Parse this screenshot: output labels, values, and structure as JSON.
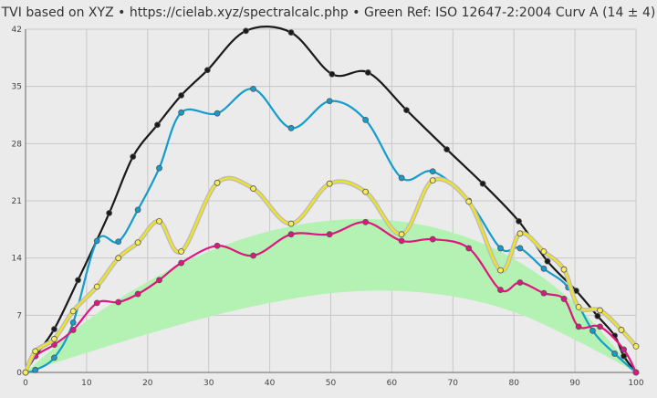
{
  "chart_data": {
    "type": "line",
    "title": "TVI based on XYZ  •  https://cielab.xyz/spectralcalc.php  •  Green Ref: ISO 12647-2:2004 Curv A (14 ± 4)",
    "xlabel": "",
    "ylabel": "",
    "xlim": [
      0,
      100
    ],
    "ylim": [
      0,
      42
    ],
    "x_ticks": [
      0,
      10,
      20,
      30,
      40,
      50,
      60,
      70,
      80,
      90,
      100
    ],
    "y_ticks": [
      0,
      7,
      14,
      21,
      28,
      35,
      42
    ],
    "grid": true,
    "reference_band": {
      "color": "#b4f2b4",
      "x": [
        0,
        10,
        20,
        30,
        40,
        50,
        60,
        70,
        80,
        90,
        100
      ],
      "upper": [
        0,
        6.3,
        11.1,
        14.8,
        17.3,
        18.6,
        18.6,
        17.1,
        13.9,
        8.4,
        0
      ],
      "lower": [
        0,
        2.4,
        4.7,
        6.8,
        8.5,
        9.7,
        10.0,
        9.3,
        7.4,
        4.0,
        0
      ]
    },
    "series": [
      {
        "color": "#1a1a1a",
        "x": [
          0,
          1.6,
          4.7,
          8.6,
          13.7,
          17.6,
          21.6,
          25.5,
          29.8,
          36.1,
          43.5,
          50.2,
          56.1,
          62.4,
          69.0,
          74.9,
          80.8,
          85.5,
          90.2,
          93.7,
          96.5,
          98.0,
          100
        ],
        "y": [
          0,
          2,
          5.3,
          11.3,
          19.5,
          26.4,
          30.3,
          33.9,
          37.0,
          41.8,
          41.6,
          36.5,
          36.7,
          32.1,
          27.3,
          23.1,
          18.5,
          13.6,
          10.0,
          6.9,
          4.5,
          2.0,
          0
        ]
      },
      {
        "color": "#149ccc",
        "x": [
          0,
          1.6,
          4.7,
          7.8,
          11.7,
          15.2,
          18.4,
          21.9,
          25.5,
          31.4,
          37.3,
          43.5,
          49.8,
          55.7,
          61.6,
          66.7,
          72.6,
          77.8,
          81.0,
          84.9,
          88.9,
          92.9,
          96.5,
          100
        ],
        "y": [
          0,
          0.3,
          1.8,
          6.1,
          16.1,
          16.0,
          19.9,
          25.0,
          31.8,
          31.7,
          34.7,
          29.9,
          33.2,
          30.9,
          23.8,
          24.6,
          21.0,
          15.2,
          15.2,
          12.7,
          10.4,
          5.1,
          2.3,
          0
        ]
      },
      {
        "color": "#e0157f",
        "x": [
          0,
          1.6,
          4.7,
          7.8,
          11.7,
          15.2,
          18.4,
          21.9,
          25.5,
          31.4,
          37.3,
          43.5,
          49.8,
          55.7,
          61.6,
          66.7,
          72.6,
          77.8,
          81.0,
          84.9,
          88.2,
          90.6,
          94.1,
          98.0,
          100
        ],
        "y": [
          0,
          2.0,
          3.4,
          5.2,
          8.5,
          8.6,
          9.6,
          11.3,
          13.4,
          15.5,
          14.3,
          16.9,
          16.9,
          18.4,
          16.1,
          16.3,
          15.2,
          10.1,
          11.0,
          9.7,
          9.0,
          5.6,
          5.6,
          2.8,
          0
        ]
      },
      {
        "color": "#f0e41c",
        "x": [
          0,
          1.6,
          4.7,
          7.8,
          11.7,
          15.2,
          18.4,
          21.9,
          25.5,
          31.4,
          37.3,
          43.5,
          49.8,
          55.7,
          61.6,
          66.7,
          72.6,
          77.8,
          81.0,
          84.9,
          88.2,
          90.6,
          94.1,
          97.6,
          100
        ],
        "y": [
          0,
          2.6,
          4.1,
          7.5,
          10.5,
          14.0,
          15.9,
          18.5,
          14.8,
          23.2,
          22.5,
          18.2,
          23.1,
          22.1,
          16.9,
          23.5,
          20.9,
          12.5,
          17.0,
          14.8,
          12.6,
          8.0,
          7.6,
          5.2,
          3.2
        ]
      }
    ]
  }
}
